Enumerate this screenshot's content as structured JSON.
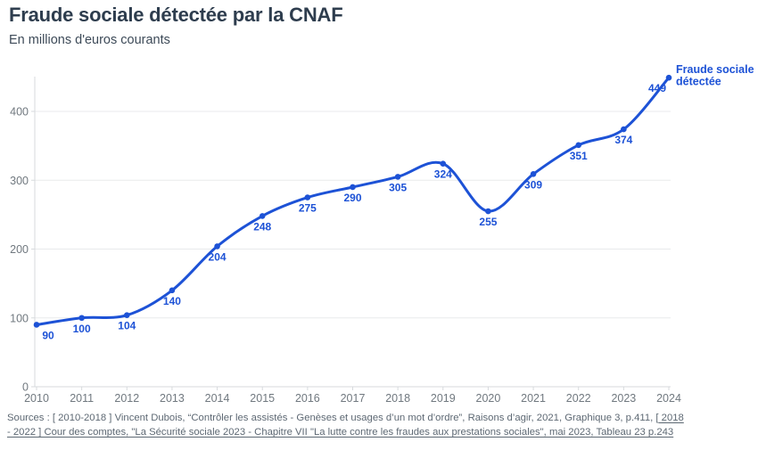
{
  "colors": {
    "accent": "#1d52d6",
    "title_color": "#2e3d4e",
    "subtitle_color": "#3d4a58",
    "axis_text": "#70787f",
    "grid": "#e8eaec",
    "axis_line": "#d7dadd",
    "source_text": "#5d6873",
    "background": "#ffffff"
  },
  "chart_data": {
    "type": "line",
    "title": "Fraude sociale détectée par la CNAF",
    "subtitle": "En millions d'euros courants",
    "xlabel": "",
    "ylabel": "",
    "x": [
      2010,
      2011,
      2012,
      2013,
      2014,
      2015,
      2016,
      2017,
      2018,
      2019,
      2020,
      2021,
      2022,
      2023,
      2024
    ],
    "series": [
      {
        "name": "Fraude sociale détectée",
        "values": [
          90,
          100,
          104,
          140,
          204,
          248,
          275,
          290,
          305,
          324,
          255,
          309,
          351,
          374,
          449
        ]
      }
    ],
    "ylim": [
      0,
      450
    ],
    "yticks": [
      0,
      100,
      200,
      300,
      400
    ],
    "grid": "horizontal",
    "point_markers": true,
    "point_labels": true,
    "curve": "smooth",
    "legend_position": "top-right",
    "legend": {
      "lines": [
        "Fraude sociale",
        "détectée"
      ]
    }
  },
  "footer": {
    "prefix": "Sources : [ 2010-2018 ] Vincent Dubois, “Contrôler les assistés - Genèses et usages d’un mot d’ordre”, Raisons d’agir, 2021, Graphique 3, p.411, [",
    "link_line1": " 2018",
    "link_line2": "- 2022 ] Cour des comptes, \"La Sécurité sociale 2023 - Chapitre VII \"La lutte contre les fraudes aux prestations sociales\", mai 2023, Tableau 23 p.243"
  }
}
